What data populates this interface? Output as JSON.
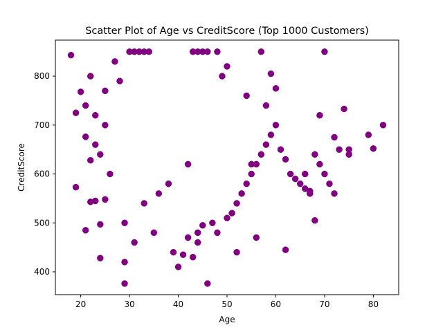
{
  "chart_data": {
    "type": "scatter",
    "title": "Scatter Plot of Age vs CreditScore (Top 1000 Customers)",
    "xlabel": "Age",
    "ylabel": "CreditScore",
    "xlim": [
      14.8,
      85.2
    ],
    "ylim": [
      353.3,
      873.7
    ],
    "xticks": [
      20,
      30,
      40,
      50,
      60,
      70,
      80
    ],
    "yticks": [
      400,
      500,
      600,
      700,
      800
    ],
    "grid": false,
    "legend": "none",
    "marker_color": "#800080",
    "series": [
      {
        "x": [
          18,
          19,
          19,
          20,
          21,
          21,
          21,
          22,
          22,
          22,
          23,
          23,
          23,
          24,
          24,
          24,
          25,
          25,
          25,
          26,
          27,
          28,
          29,
          29,
          30,
          31,
          32,
          33,
          34,
          43,
          44,
          45,
          46,
          48,
          49,
          50,
          52,
          54,
          55,
          56,
          57,
          58,
          59,
          60,
          62,
          66,
          67,
          68,
          69,
          70,
          72,
          74,
          75,
          79,
          80,
          82,
          40,
          41,
          42,
          43,
          44,
          45,
          47,
          50,
          51,
          52,
          53,
          54,
          55,
          56,
          57,
          58,
          59,
          60,
          61,
          62,
          63,
          64,
          65,
          66,
          67,
          68,
          69,
          70,
          71,
          72,
          73,
          75,
          46,
          29,
          33,
          36,
          38,
          42,
          31,
          35,
          39,
          44,
          48
        ],
        "y": [
          843,
          725,
          573,
          768,
          485,
          676,
          740,
          543,
          628,
          800,
          545,
          660,
          720,
          428,
          497,
          640,
          548,
          700,
          770,
          600,
          830,
          790,
          376,
          420,
          850,
          850,
          850,
          850,
          850,
          850,
          850,
          850,
          850,
          850,
          800,
          820,
          440,
          760,
          620,
          470,
          850,
          740,
          805,
          775,
          445,
          600,
          565,
          505,
          720,
          850,
          675,
          733,
          650,
          680,
          652,
          700,
          410,
          435,
          470,
          430,
          480,
          495,
          500,
          510,
          520,
          540,
          560,
          580,
          600,
          620,
          640,
          660,
          680,
          700,
          650,
          630,
          600,
          590,
          580,
          570,
          560,
          640,
          620,
          600,
          580,
          560,
          650,
          640,
          376,
          500,
          540,
          560,
          580,
          620,
          460,
          480,
          440,
          460,
          480
        ]
      }
    ]
  }
}
